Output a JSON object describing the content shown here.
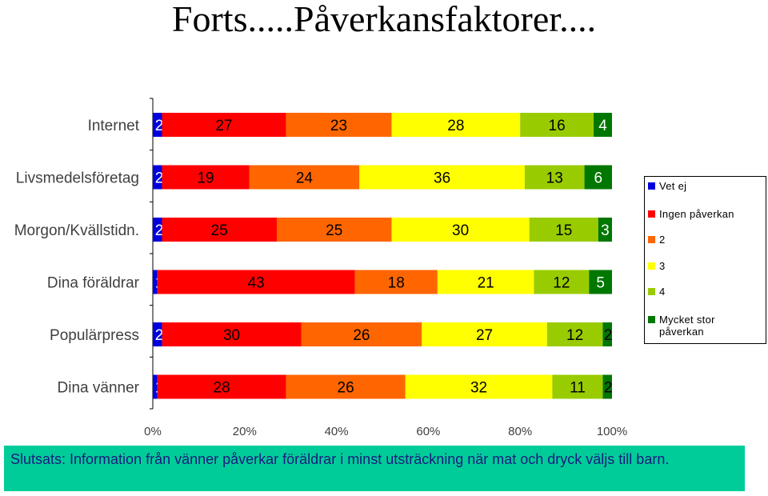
{
  "title": "Forts.....Påverkansfaktorer....",
  "chart_data": {
    "type": "bar",
    "orientation": "horizontal",
    "stacked": "percent",
    "categories": [
      "Internet",
      "Livsmedelsföretag",
      "Morgon/Kvällstidn.",
      "Dina föräldrar",
      "Populärpress",
      "Dina vänner"
    ],
    "series": [
      {
        "name": "Vet ej",
        "color": "#0000dd",
        "values": [
          2,
          2,
          2,
          1,
          2,
          1
        ]
      },
      {
        "name": "Ingen påverkan",
        "color": "#ff0000",
        "values": [
          27,
          19,
          25,
          43,
          30,
          28
        ]
      },
      {
        "name": "2",
        "color": "#ff6600",
        "values": [
          23,
          24,
          25,
          18,
          26,
          26
        ]
      },
      {
        "name": "3",
        "color": "#ffff00",
        "values": [
          28,
          36,
          30,
          21,
          27,
          32
        ]
      },
      {
        "name": "4",
        "color": "#99cc00",
        "values": [
          16,
          13,
          15,
          12,
          12,
          11
        ]
      },
      {
        "name": "Mycket stor påverkan",
        "color": "#007700",
        "values": [
          4,
          6,
          3,
          5,
          2,
          2
        ]
      }
    ],
    "xticks": [
      "0%",
      "20%",
      "40%",
      "60%",
      "80%",
      "100%"
    ],
    "xlim": [
      0,
      100
    ],
    "legend_position": "right",
    "data_labels": true
  },
  "legend": {
    "items": [
      {
        "label": "Vet ej",
        "color": "#0000dd"
      },
      {
        "label": "Ingen påverkan",
        "color": "#ff0000"
      },
      {
        "label": "2",
        "color": "#ff6600"
      },
      {
        "label": "3",
        "color": "#ffff00"
      },
      {
        "label": "4",
        "color": "#99cc00"
      },
      {
        "label": "Mycket stor påverkan",
        "color": "#007700"
      }
    ]
  },
  "conclusion": "Slutsats: Information från vänner påverkar föräldrar i minst utsträckning när mat och dryck väljs till barn."
}
